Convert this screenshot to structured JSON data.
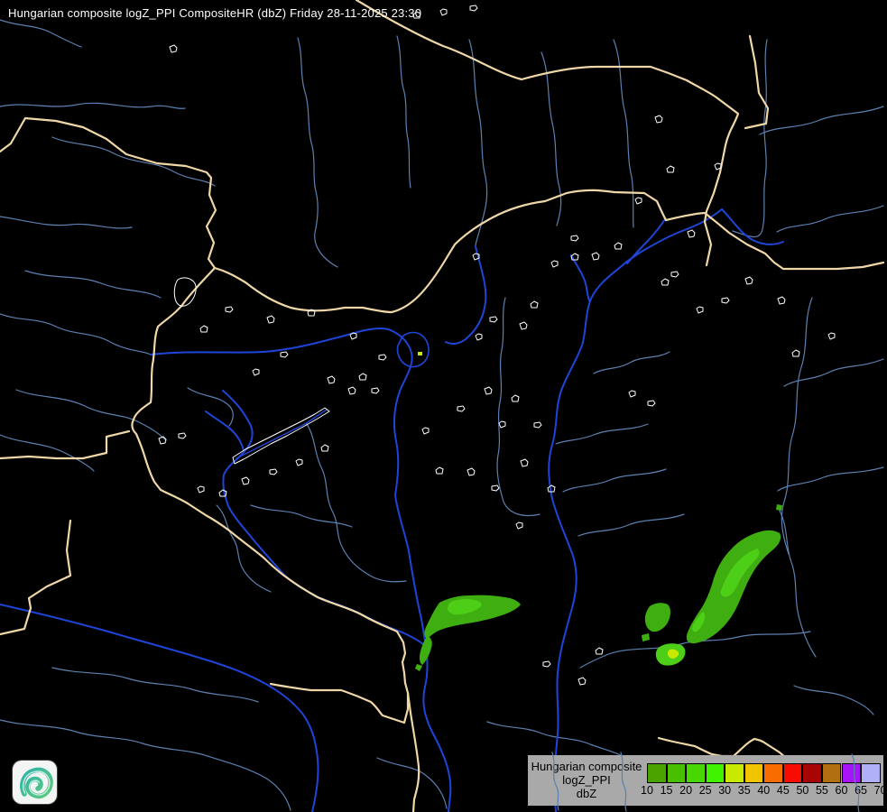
{
  "header": {
    "title": "Hungarian composite logZ_PPI CompositeHR (dbZ) Friday 28-11-2025 23:30"
  },
  "legend": {
    "product": "Hungarian composite",
    "parameter": "logZ_PPI",
    "unit": "dbZ",
    "background_color": "#a9a9a9",
    "text_color": "#000000",
    "ticks": [
      "10",
      "15",
      "20",
      "25",
      "30",
      "35",
      "40",
      "45",
      "50",
      "55",
      "60",
      "65",
      "70"
    ],
    "cell_colors": [
      "#4aa400",
      "#48c000",
      "#48d800",
      "#40f400",
      "#c8ea00",
      "#f2c400",
      "#f86c00",
      "#f80c00",
      "#a80404",
      "#b07010",
      "#a814f8",
      "#b0b0f8"
    ]
  },
  "map": {
    "background_color": "#000000",
    "country_border_color": "#efd7a7",
    "river_major_color": "#1f45d8",
    "river_minor_color": "#5c80b0",
    "settlement_outline_color": "#ffffff",
    "echo_levels": {
      "dbz_10_15": "#3fae10",
      "dbz_15_25": "#4ecf17",
      "dbz_25_30": "#c8ea00"
    },
    "echo_regions": [
      {
        "name": "south-central-band",
        "approx_center": "520,684",
        "max_dbz": 25
      },
      {
        "name": "southeast-system",
        "approx_center": "810,650",
        "max_dbz": 25
      },
      {
        "name": "southeast-small-cells",
        "approx_center": "738,712",
        "max_dbz": 30
      },
      {
        "name": "isolated-speck-east",
        "approx_center": "864,562",
        "max_dbz": 15
      },
      {
        "name": "isolated-speck-central",
        "approx_center": "466,392",
        "max_dbz": 30
      }
    ]
  },
  "logo": {
    "label": "met-service-swirl-logo",
    "gradient_start": "#2fb3ab",
    "gradient_end": "#5ac97e",
    "background": "#f3f5f4"
  }
}
